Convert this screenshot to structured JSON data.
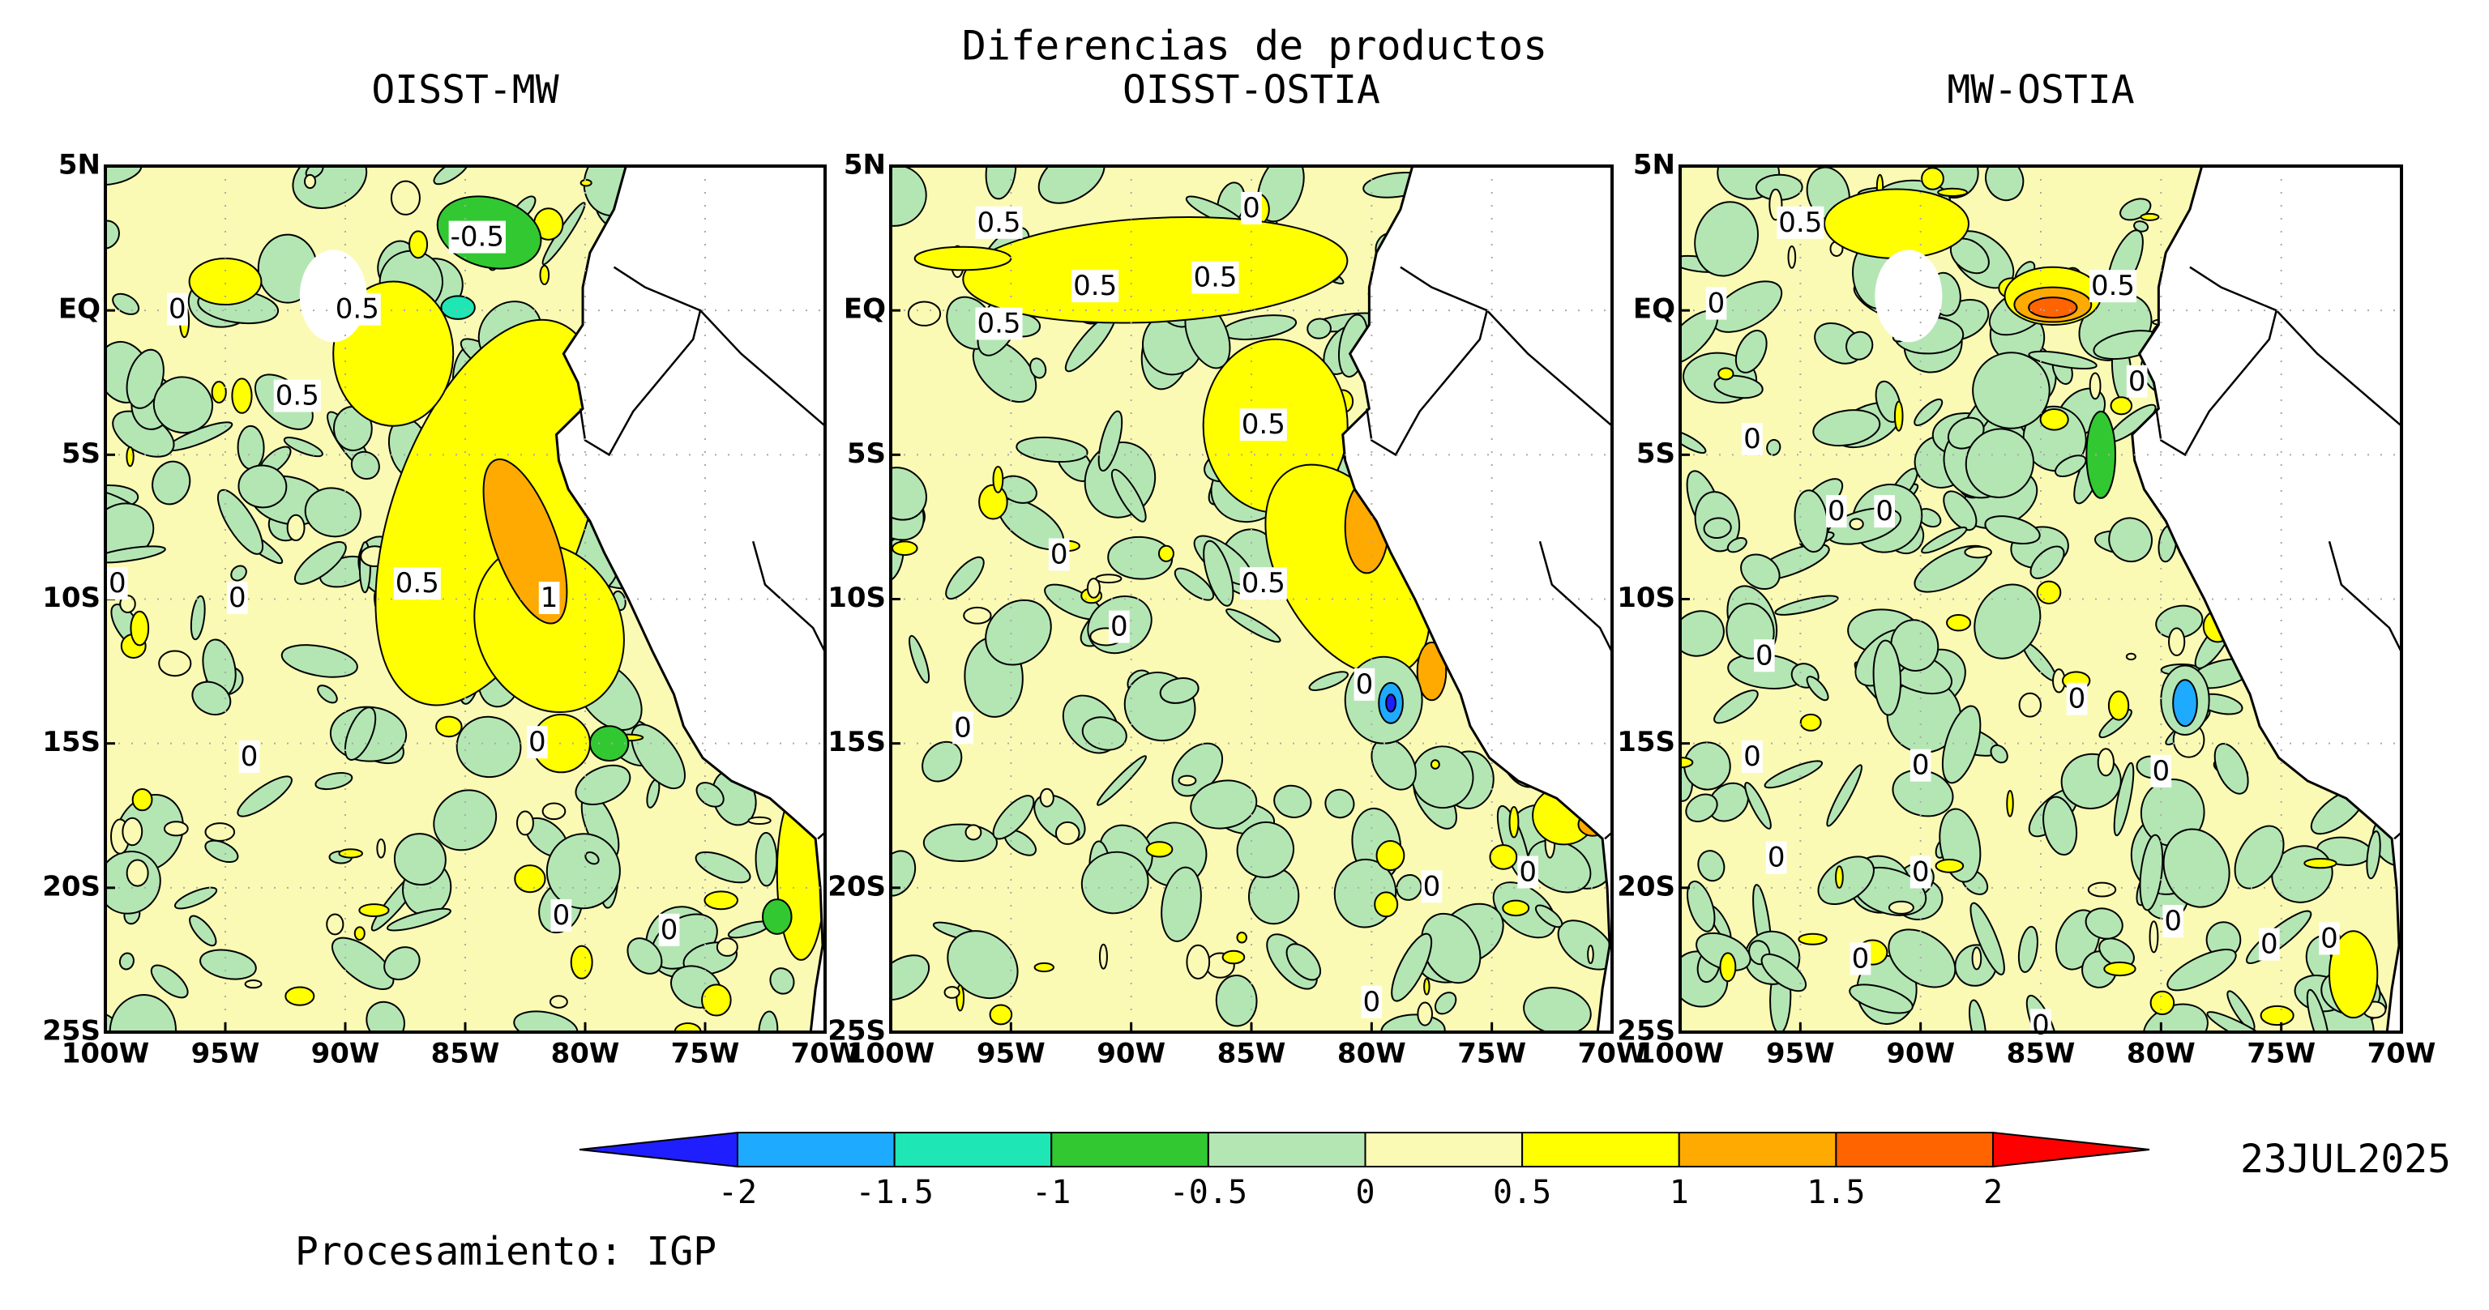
{
  "title": "Diferencias de productos",
  "map_axes": {
    "xlim": [
      -100,
      -70
    ],
    "ylim": [
      -25,
      5
    ],
    "xticks": [
      {
        "value": -100,
        "label": "100W"
      },
      {
        "value": -95,
        "label": "95W"
      },
      {
        "value": -90,
        "label": "90W"
      },
      {
        "value": -85,
        "label": "85W"
      },
      {
        "value": -80,
        "label": "80W"
      },
      {
        "value": -75,
        "label": "75W"
      },
      {
        "value": -70,
        "label": "70W"
      }
    ],
    "yticks": [
      {
        "value": 5,
        "label": "5N"
      },
      {
        "value": 0,
        "label": "EQ"
      },
      {
        "value": -5,
        "label": "5S"
      },
      {
        "value": -10,
        "label": "10S"
      },
      {
        "value": -15,
        "label": "15S"
      },
      {
        "value": -20,
        "label": "20S"
      },
      {
        "value": -25,
        "label": "25S"
      }
    ],
    "grid": true
  },
  "panels": [
    {
      "title": "OISST-MW",
      "contour_labels": [
        -0.5,
        0.5,
        0,
        0.5,
        0,
        0,
        0.5,
        1,
        0,
        0,
        0,
        0
      ]
    },
    {
      "title": "OISST-OSTIA",
      "contour_labels": [
        0.5,
        0,
        0.5,
        0.5,
        0.5,
        0.5,
        0,
        0.5,
        0,
        0,
        0,
        0,
        0,
        0
      ]
    },
    {
      "title": "MW-OSTIA",
      "contour_labels": [
        0.5,
        0,
        0.5,
        0,
        0,
        0,
        0,
        0,
        0,
        0,
        0,
        0,
        0,
        0,
        0,
        0,
        0,
        0,
        0
      ]
    }
  ],
  "colorbar": {
    "levels": [
      -2,
      -1.5,
      -1,
      -0.5,
      0,
      0.5,
      1,
      1.5,
      2
    ],
    "colors": [
      "#1e1eff",
      "#1eaaff",
      "#1ee6b4",
      "#32c832",
      "#b4e6b4",
      "#fafab4",
      "#ffff00",
      "#ffaa00",
      "#ff6400",
      "#ff0000"
    ]
  },
  "date": "23JUL2025",
  "credit": "Procesamiento: IGP"
}
